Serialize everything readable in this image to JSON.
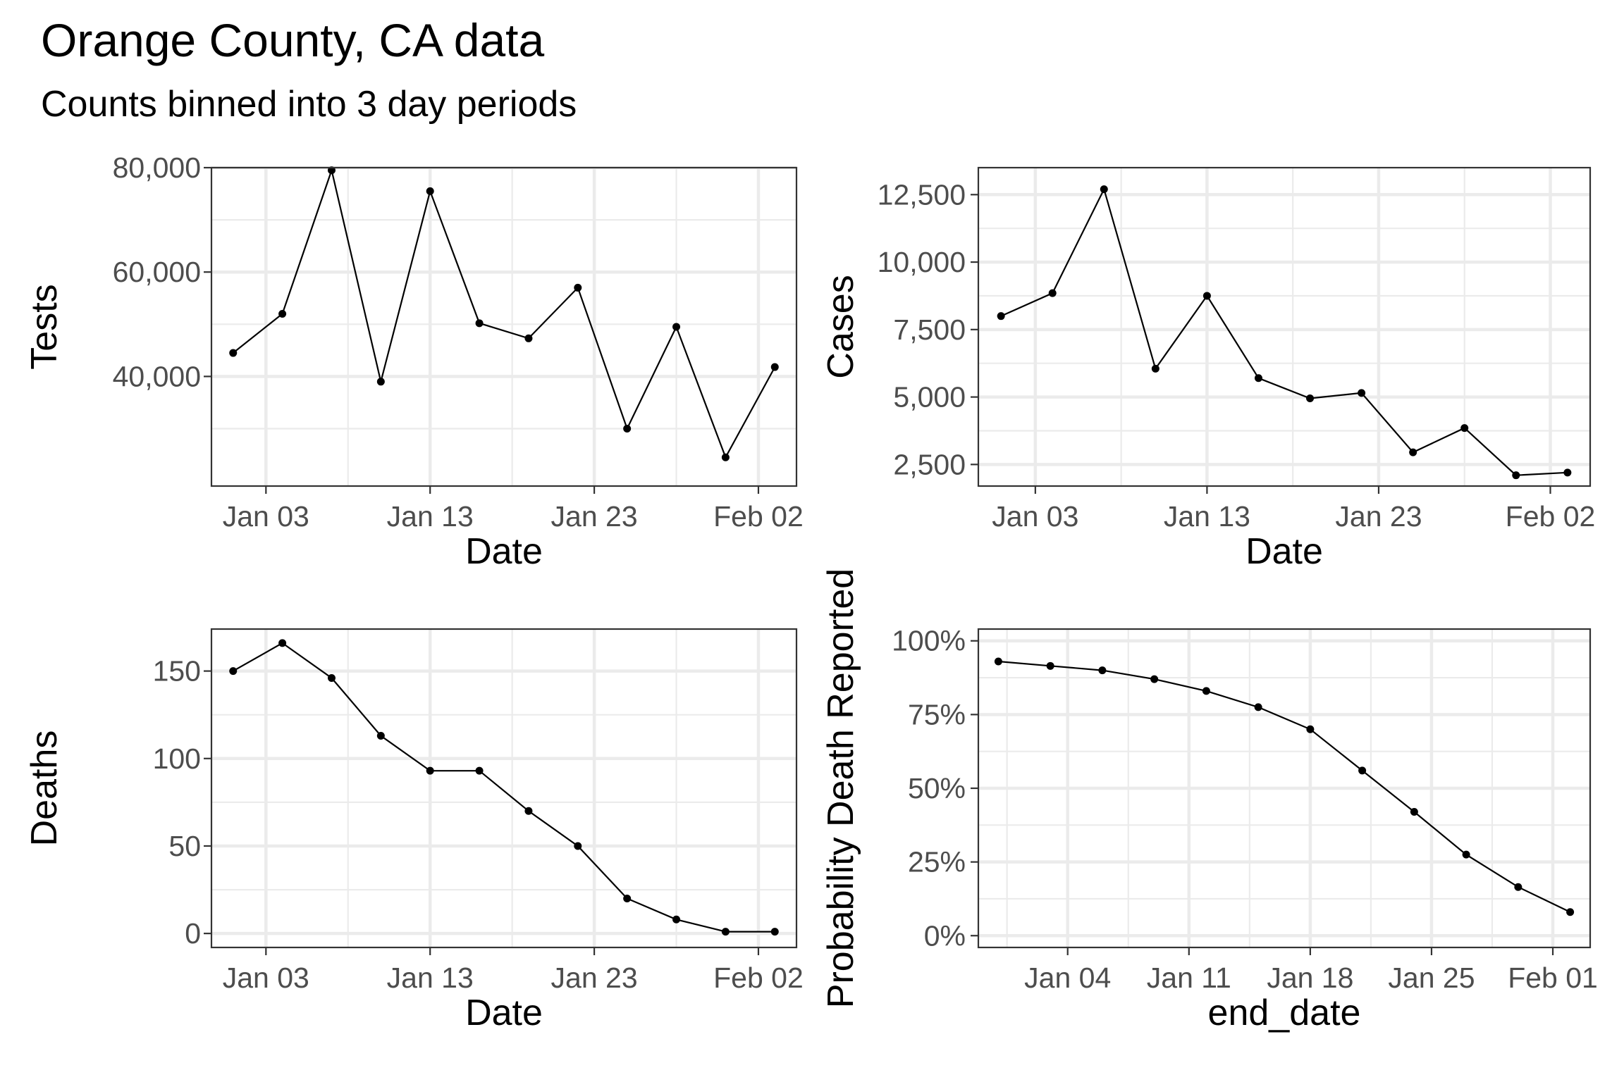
{
  "title": "Orange County, CA data",
  "subtitle": "Counts binned into 3 day periods",
  "chart_data": [
    {
      "type": "line",
      "id": "tests",
      "xlabel": "Date",
      "ylabel": "Tests",
      "x_tick_labels": [
        "Jan 03",
        "Jan 13",
        "Jan 23",
        "Feb 02"
      ],
      "y_tick_labels": [
        "40,000",
        "60,000",
        "80,000"
      ],
      "y_ticks": [
        40000,
        60000,
        80000
      ],
      "ylim": [
        19000,
        80000
      ],
      "x": [
        "2021-01-01",
        "2021-01-04",
        "2021-01-07",
        "2021-01-10",
        "2021-01-13",
        "2021-01-16",
        "2021-01-19",
        "2021-01-22",
        "2021-01-25",
        "2021-01-28",
        "2021-01-31",
        "2021-02-03"
      ],
      "y": [
        44500,
        52000,
        79500,
        39000,
        75500,
        50200,
        47300,
        57000,
        30000,
        49500,
        24500,
        41800
      ],
      "grid": true
    },
    {
      "type": "line",
      "id": "cases",
      "xlabel": "Date",
      "ylabel": "Cases",
      "x_tick_labels": [
        "Jan 03",
        "Jan 13",
        "Jan 23",
        "Feb 02"
      ],
      "y_tick_labels": [
        "2,500",
        "5,000",
        "7,500",
        "10,000",
        "12,500"
      ],
      "y_ticks": [
        2500,
        5000,
        7500,
        10000,
        12500
      ],
      "ylim": [
        1700,
        13500
      ],
      "x": [
        "2021-01-01",
        "2021-01-04",
        "2021-01-07",
        "2021-01-10",
        "2021-01-13",
        "2021-01-16",
        "2021-01-19",
        "2021-01-22",
        "2021-01-25",
        "2021-01-28",
        "2021-01-31",
        "2021-02-03"
      ],
      "y": [
        8000,
        8850,
        12700,
        6050,
        8750,
        5700,
        4950,
        5150,
        2950,
        3850,
        2100,
        2200
      ],
      "grid": true
    },
    {
      "type": "line",
      "id": "deaths",
      "xlabel": "Date",
      "ylabel": "Deaths",
      "x_tick_labels": [
        "Jan 03",
        "Jan 13",
        "Jan 23",
        "Feb 02"
      ],
      "y_tick_labels": [
        "0",
        "50",
        "100",
        "150"
      ],
      "y_ticks": [
        0,
        50,
        100,
        150
      ],
      "ylim": [
        -8,
        174
      ],
      "x": [
        "2021-01-01",
        "2021-01-04",
        "2021-01-07",
        "2021-01-10",
        "2021-01-13",
        "2021-01-16",
        "2021-01-19",
        "2021-01-22",
        "2021-01-25",
        "2021-01-28",
        "2021-01-31",
        "2021-02-03"
      ],
      "y": [
        150,
        166,
        146,
        113,
        93,
        93,
        70,
        50,
        20,
        8,
        1,
        1
      ],
      "grid": true
    },
    {
      "type": "line",
      "id": "probability",
      "xlabel": "end_date",
      "ylabel": "Probability Death Reported",
      "x_tick_labels": [
        "Jan 04",
        "Jan 11",
        "Jan 18",
        "Jan 25",
        "Feb 01"
      ],
      "y_tick_labels": [
        "0%",
        "25%",
        "50%",
        "75%",
        "100%"
      ],
      "y_ticks": [
        0,
        0.25,
        0.5,
        0.75,
        1.0
      ],
      "ylim": [
        -0.04,
        1.04
      ],
      "x": [
        "2020-12-31",
        "2021-01-03",
        "2021-01-06",
        "2021-01-09",
        "2021-01-12",
        "2021-01-15",
        "2021-01-18",
        "2021-01-21",
        "2021-01-24",
        "2021-01-27",
        "2021-01-30",
        "2021-02-02"
      ],
      "y": [
        0.93,
        0.915,
        0.9,
        0.87,
        0.83,
        0.775,
        0.7,
        0.56,
        0.42,
        0.275,
        0.165,
        0.08
      ],
      "grid": true
    }
  ]
}
